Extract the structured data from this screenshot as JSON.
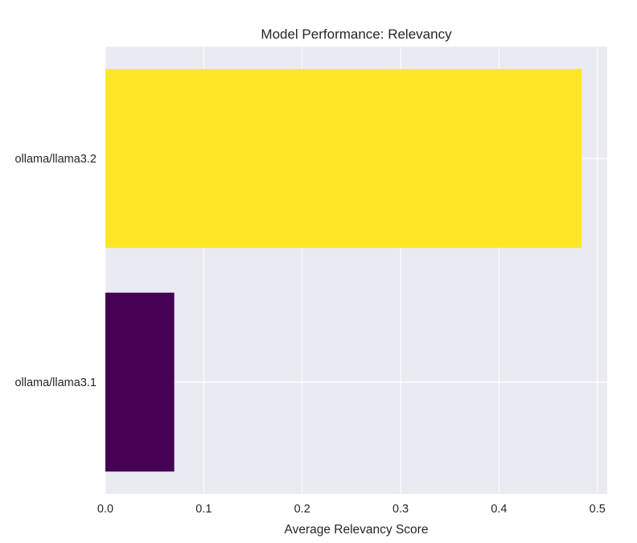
{
  "chart_data": {
    "type": "bar",
    "orientation": "horizontal",
    "title": "Model Performance: Relevancy",
    "xlabel": "Average Relevancy Score",
    "ylabel": "",
    "categories": [
      "ollama/llama3.1",
      "ollama/llama3.2"
    ],
    "values": [
      0.07,
      0.484
    ],
    "colors": [
      "#440154",
      "#fde725"
    ],
    "xlim": [
      0,
      0.51
    ],
    "xticks": [
      0.0,
      0.1,
      0.2,
      0.3,
      0.4,
      0.5
    ],
    "xtick_labels": [
      "0.0",
      "0.1",
      "0.2",
      "0.3",
      "0.4",
      "0.5"
    ],
    "grid": true,
    "background": "#eaeaf2",
    "gridline_color": "#ffffff",
    "legend": "none"
  }
}
